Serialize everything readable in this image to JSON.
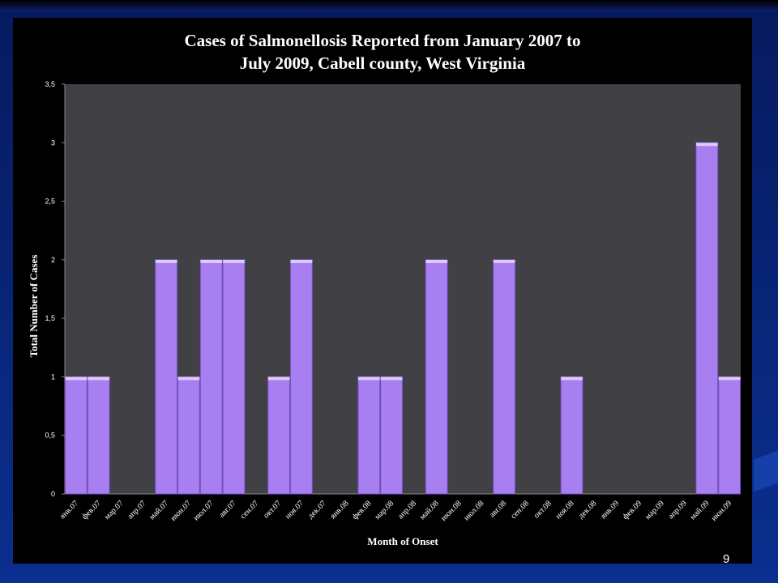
{
  "page_number": "9",
  "colors": {
    "background": "#0b2f8f",
    "panel": "#000000",
    "plot_area": "#404045",
    "bar": "#a77ff0",
    "bar_edge": "#7a52c9",
    "text": "#ffffff"
  },
  "chart_data": {
    "type": "bar",
    "title_line1": "Cases of Salmonellosis Reported from January 2007 to",
    "title_line2": "July 2009,  Cabell county, West Virginia",
    "xlabel": "Month of Onset",
    "ylabel": "Total Number of Cases",
    "ylim": [
      0,
      3.5
    ],
    "yticks": [
      "0",
      "0,5",
      "1",
      "1,5",
      "2",
      "2,5",
      "3",
      "3,5"
    ],
    "categories": [
      "янв.07",
      "фев.07",
      "мар.07",
      "апр.07",
      "май.07",
      "июн.07",
      "июл.07",
      "авг.07",
      "сен.07",
      "окт.07",
      "ноя.07",
      "дек.07",
      "янв.08",
      "фев.08",
      "мар.08",
      "апр.08",
      "май.08",
      "июн.08",
      "июл.08",
      "авг.08",
      "сен.08",
      "окт.08",
      "ноя.08",
      "дек.08",
      "янв.09",
      "фев.09",
      "мар.09",
      "апр.09",
      "май.09",
      "июн.09"
    ],
    "values": [
      1,
      1,
      0,
      0,
      2,
      1,
      2,
      2,
      0,
      1,
      2,
      0,
      0,
      1,
      1,
      0,
      2,
      0,
      0,
      2,
      0,
      0,
      1,
      0,
      0,
      0,
      0,
      0,
      3,
      1
    ],
    "grid": false,
    "legend": "none"
  }
}
